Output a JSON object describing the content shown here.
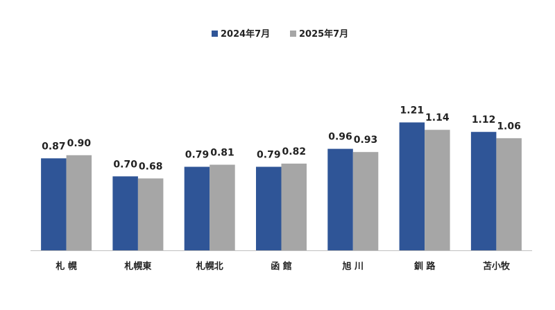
{
  "chart_data": {
    "type": "bar",
    "categories": [
      "札 幌",
      "札幌東",
      "札幌北",
      "函 館",
      "旭 川",
      "釧 路",
      "苫小牧"
    ],
    "series": [
      {
        "name": "2024年7月",
        "values": [
          0.87,
          0.7,
          0.79,
          0.79,
          0.96,
          1.21,
          1.12
        ],
        "labels": [
          "0.87",
          "0.70",
          "0.79",
          "0.79",
          "0.96",
          "1.21",
          "1.12"
        ],
        "color": "#2f5597"
      },
      {
        "name": "2025年7月",
        "values": [
          0.9,
          0.68,
          0.81,
          0.82,
          0.93,
          1.14,
          1.06
        ],
        "labels": [
          "0.90",
          "0.68",
          "0.81",
          "0.82",
          "0.93",
          "1.14",
          "1.06"
        ],
        "color": "#a6a6a6"
      }
    ],
    "ylim": [
      0,
      1.4
    ],
    "grid": false,
    "legend": "top-center",
    "axis_color": "#bfbfbf"
  }
}
